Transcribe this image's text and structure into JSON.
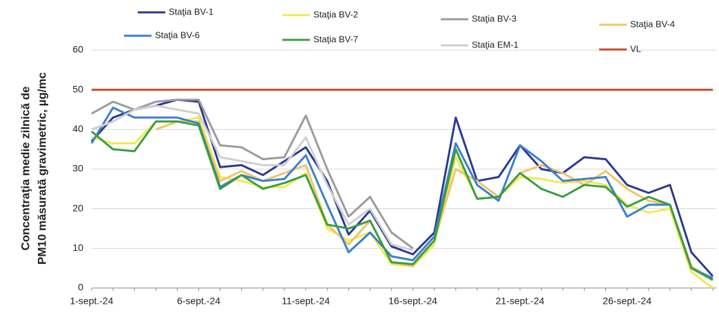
{
  "chart_data": {
    "type": "line",
    "ylabel": [
      "Concentraţia medie zilnică de",
      "PM10 măsurată gravimetric, µg/mc"
    ],
    "categories": [
      "1-sept.-24",
      null,
      null,
      null,
      null,
      "6-sept.-24",
      null,
      null,
      null,
      null,
      "11-sept.-24",
      null,
      null,
      null,
      null,
      "16-sept.-24",
      null,
      null,
      null,
      null,
      "21-sept.-24",
      null,
      null,
      null,
      null,
      "26-sept.-24",
      null,
      null,
      null,
      null
    ],
    "ylim": [
      0,
      60
    ],
    "yticks": [
      0,
      10,
      20,
      30,
      40,
      50,
      60
    ],
    "grid": true,
    "series": [
      {
        "name": "Staţia BV-1",
        "color": "#2b3990",
        "values": [
          37,
          43,
          45,
          46,
          47.5,
          47,
          30.5,
          31,
          28.5,
          32,
          35.5,
          27,
          13.5,
          19.5,
          10.5,
          8.5,
          14,
          43,
          27,
          28,
          36,
          30,
          29,
          33,
          32.5,
          26,
          24,
          26,
          9,
          3
        ]
      },
      {
        "name": "Staţia BV-2",
        "color": "#f2e94e",
        "values": [
          38,
          36.5,
          36.5,
          42,
          42,
          43,
          28,
          27,
          25.5,
          25.5,
          29,
          15,
          12,
          14,
          6,
          5.5,
          11,
          33,
          22.5,
          23,
          28,
          27.5,
          26.5,
          27,
          26,
          21,
          19,
          20,
          4,
          0
        ]
      },
      {
        "name": "Staţia BV-3",
        "color": "#9b9b9b",
        "values": [
          44,
          47,
          45,
          47,
          47.5,
          47.5,
          36,
          35.5,
          32.5,
          33,
          43.5,
          30,
          18,
          23,
          14,
          10,
          null,
          null,
          null,
          null,
          null,
          null,
          null,
          null,
          null,
          null,
          null,
          null,
          null,
          null
        ]
      },
      {
        "name": "Staţia BV-4",
        "color": "#f2c464",
        "values": [
          null,
          null,
          null,
          40,
          42,
          42,
          27,
          29.5,
          27,
          29,
          31,
          16,
          11,
          17,
          6.5,
          5.5,
          12,
          30,
          27,
          23,
          29,
          31,
          29,
          26,
          29.5,
          25,
          22,
          21,
          5.5,
          2
        ]
      },
      {
        "name": "Staţia BV-6",
        "color": "#3b7fd1",
        "values": [
          36.5,
          45.5,
          43,
          43,
          43,
          41.5,
          25.5,
          28.5,
          27,
          27.5,
          33.5,
          21,
          9,
          14,
          8,
          7,
          13,
          36.5,
          26,
          22,
          36,
          32,
          27,
          27.5,
          28,
          18,
          21,
          21,
          5,
          2.5
        ]
      },
      {
        "name": "Staţia BV-7",
        "color": "#3a9e44",
        "values": [
          39.5,
          35,
          34.5,
          42,
          42,
          41,
          25,
          28.5,
          25,
          26.5,
          28.5,
          16,
          15,
          17,
          6.5,
          6,
          12,
          35,
          22.5,
          23,
          29,
          25,
          23,
          26,
          25.5,
          20.5,
          23,
          21,
          5,
          2
        ]
      },
      {
        "name": "Staţia EM-1",
        "color": "#cfcfcf",
        "values": [
          40,
          42,
          45,
          46,
          45,
          44,
          33,
          32,
          31,
          31,
          38,
          26,
          16,
          20,
          11,
          9.5,
          null,
          null,
          null,
          null,
          null,
          null,
          null,
          null,
          null,
          null,
          null,
          null,
          null,
          null
        ]
      },
      {
        "name": "VL",
        "color": "#c94a32",
        "values": [
          50,
          50,
          50,
          50,
          50,
          50,
          50,
          50,
          50,
          50,
          50,
          50,
          50,
          50,
          50,
          50,
          50,
          50,
          50,
          50,
          50,
          50,
          50,
          50,
          50,
          50,
          50,
          50,
          50,
          50
        ]
      }
    ]
  }
}
